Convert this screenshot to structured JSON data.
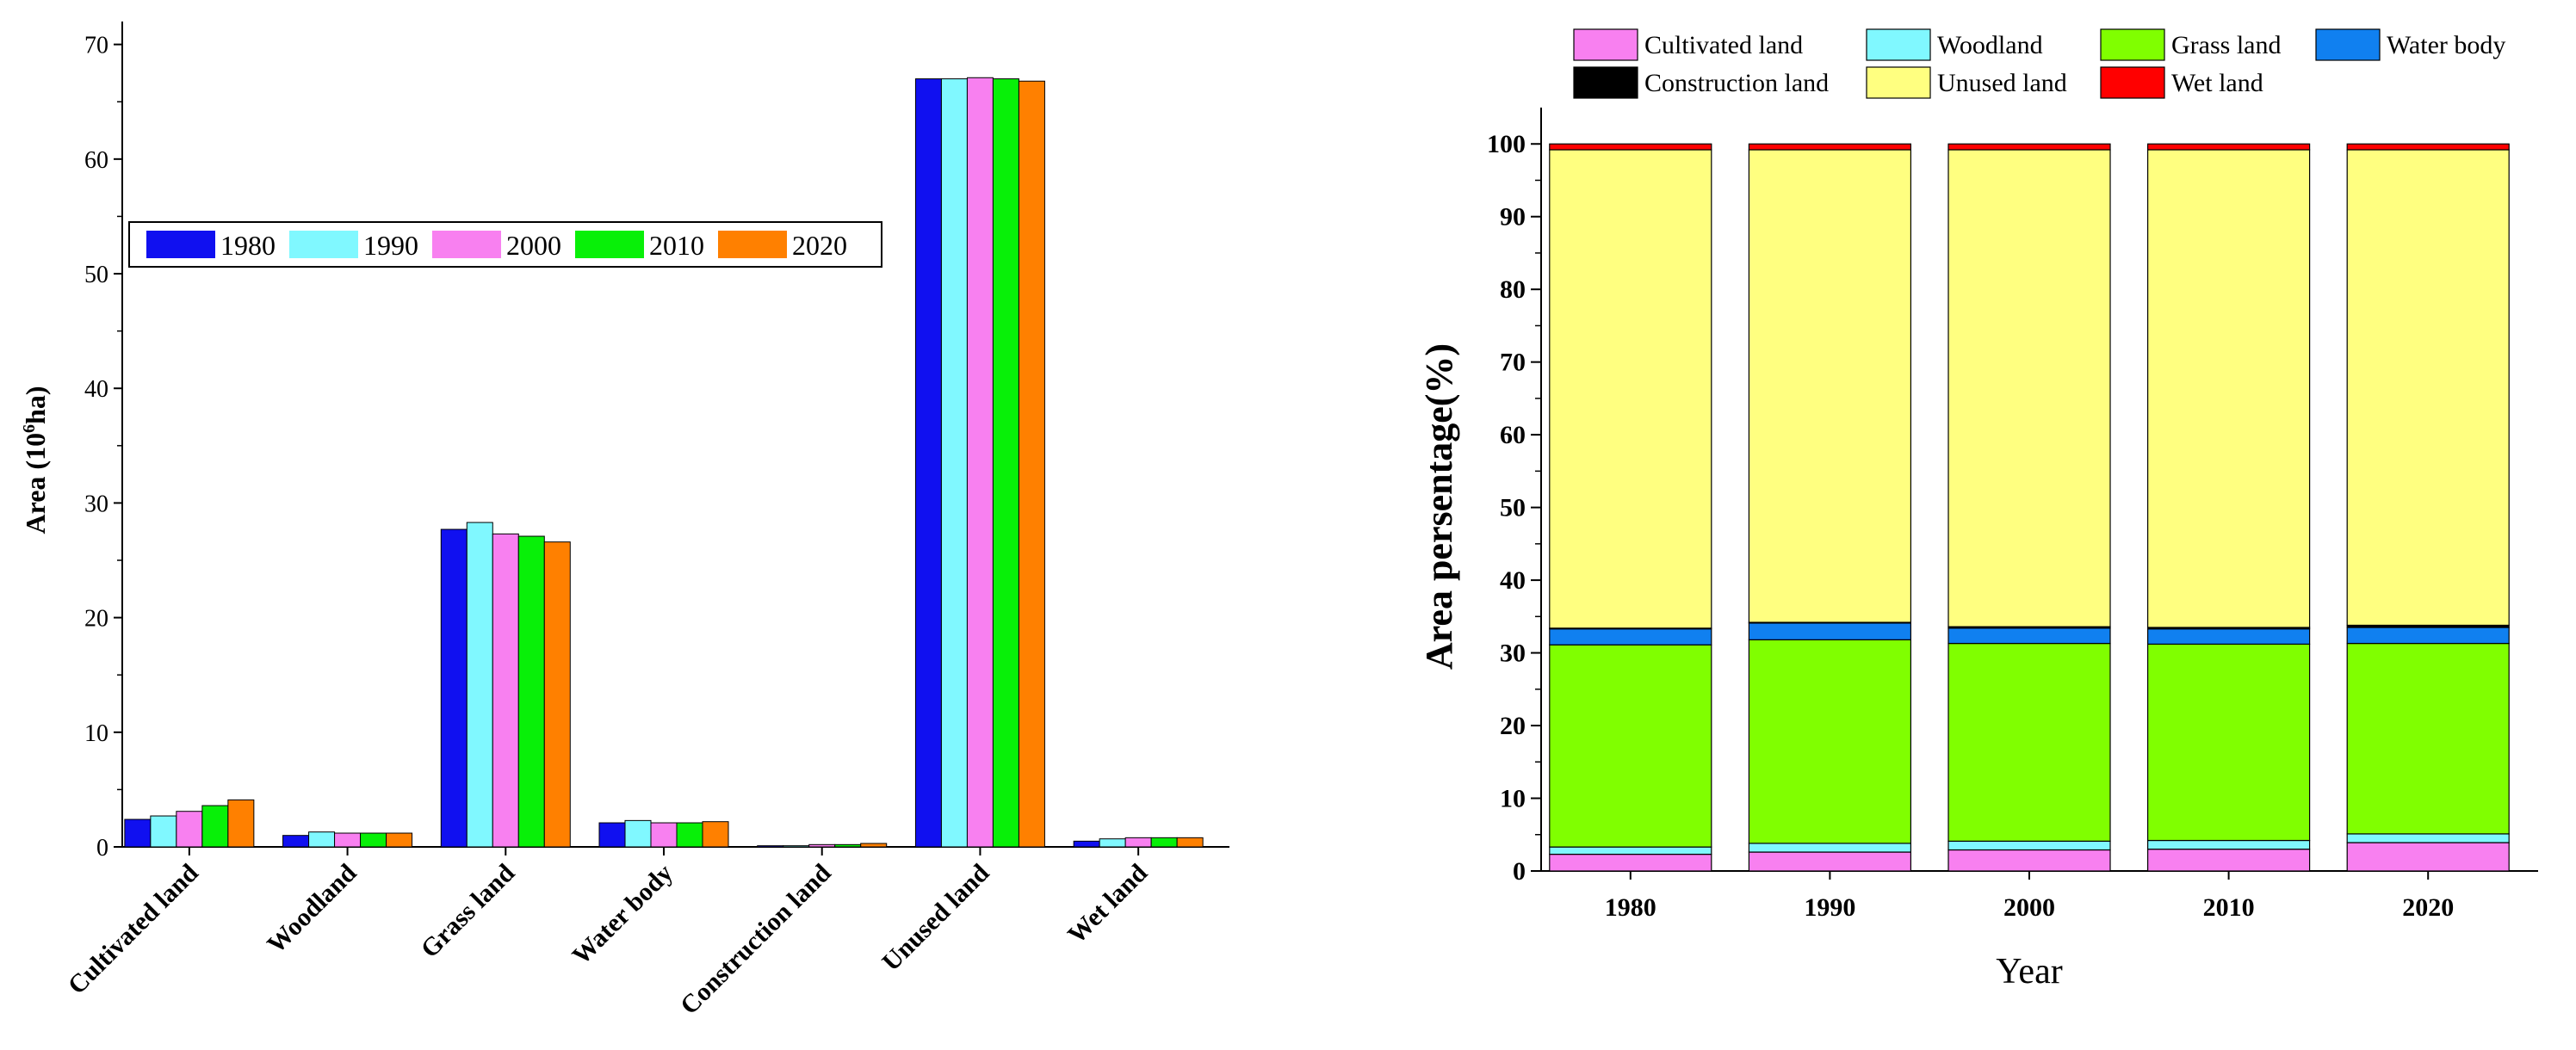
{
  "chart_data": [
    {
      "type": "bar",
      "title": "",
      "xlabel": "",
      "ylabel": "Area (10⁶ha)",
      "ylabel_main": "Area (10",
      "ylabel_sup": "6",
      "ylabel_tail": "ha)",
      "ylim": [
        0,
        72
      ],
      "yticks": [
        0,
        10,
        20,
        30,
        40,
        50,
        60,
        70
      ],
      "legend_position": "upper-left",
      "categories": [
        "Cultivated land",
        "Woodland",
        "Grass land",
        "Water body",
        "Construction land",
        "Unused land",
        "Wet land"
      ],
      "series": [
        {
          "name": "1980",
          "color": "#1010f0",
          "values": [
            2.4,
            1.0,
            27.7,
            2.1,
            0.1,
            67.0,
            0.5
          ]
        },
        {
          "name": "1990",
          "color": "#80f8ff",
          "values": [
            2.7,
            1.3,
            28.3,
            2.3,
            0.1,
            67.0,
            0.7
          ]
        },
        {
          "name": "2000",
          "color": "#f880f0",
          "values": [
            3.1,
            1.2,
            27.3,
            2.1,
            0.2,
            67.1,
            0.8
          ]
        },
        {
          "name": "2010",
          "color": "#08f008",
          "values": [
            3.6,
            1.2,
            27.1,
            2.1,
            0.2,
            67.0,
            0.8
          ]
        },
        {
          "name": "2020",
          "color": "#ff8000",
          "values": [
            4.1,
            1.2,
            26.6,
            2.2,
            0.3,
            66.8,
            0.8
          ]
        }
      ]
    },
    {
      "type": "bar",
      "stacked": true,
      "title": "",
      "xlabel": "Year",
      "ylabel": "Area persentage(%)",
      "ylim": [
        0,
        105
      ],
      "yticks": [
        0,
        10,
        20,
        30,
        40,
        50,
        60,
        70,
        80,
        90,
        100
      ],
      "legend_position": "top",
      "categories": [
        "1980",
        "1990",
        "2000",
        "2010",
        "2020"
      ],
      "series": [
        {
          "name": "Cultivated land",
          "color": "#f880f0",
          "values": [
            2.3,
            2.6,
            2.9,
            3.0,
            3.9
          ]
        },
        {
          "name": "Woodland",
          "color": "#80f8ff",
          "values": [
            1.0,
            1.2,
            1.2,
            1.2,
            1.2
          ]
        },
        {
          "name": "Grass land",
          "color": "#80ff00",
          "values": [
            27.8,
            28.0,
            27.2,
            27.0,
            26.2
          ]
        },
        {
          "name": "Water body",
          "color": "#1080f0",
          "values": [
            2.2,
            2.3,
            2.1,
            2.1,
            2.2
          ]
        },
        {
          "name": "Construction land",
          "color": "#000000",
          "values": [
            0.1,
            0.1,
            0.2,
            0.2,
            0.3
          ]
        },
        {
          "name": "Unused land",
          "color": "#ffff80",
          "values": [
            65.8,
            65.0,
            65.6,
            65.7,
            65.4
          ]
        },
        {
          "name": "Wet land",
          "color": "#ff0000",
          "values": [
            0.8,
            0.8,
            0.8,
            0.8,
            0.8
          ]
        }
      ]
    }
  ]
}
